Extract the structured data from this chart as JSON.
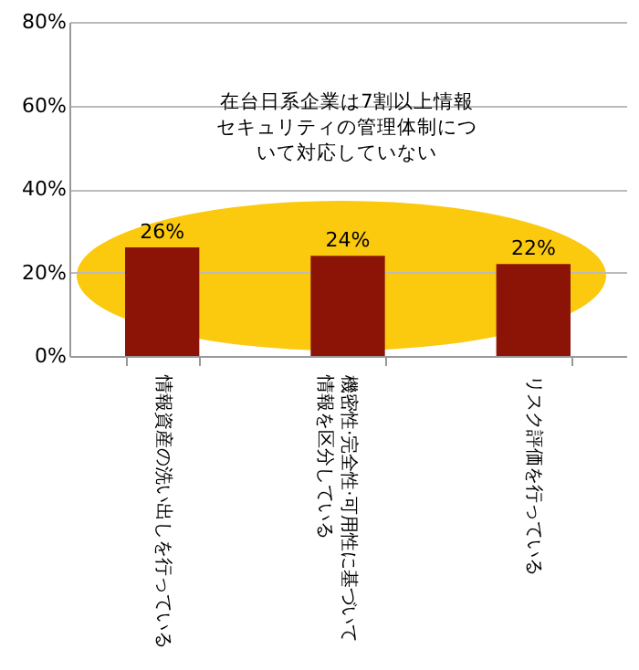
{
  "chart_data": {
    "type": "bar",
    "categories": [
      "情報資産の洗い出しを行っている",
      "機密性·完全性·可用性に基づいて情報を区分している",
      "リスク評価を行っている"
    ],
    "values": [
      26,
      24,
      22
    ],
    "color": "#8b1407",
    "ylim": [
      0,
      80
    ],
    "yticks": [
      {
        "value": 0,
        "label": "0%"
      },
      {
        "value": 20,
        "label": "20%"
      },
      {
        "value": 40,
        "label": "40%"
      },
      {
        "value": 60,
        "label": "60%"
      },
      {
        "value": 80,
        "label": "80%"
      }
    ],
    "grid": "y",
    "data_labels": true,
    "value_labels": [
      "26%",
      "24%",
      "22%"
    ],
    "annotations": [
      "在台日系企業は7割以上情報セキュリティの管理体制について対応していない"
    ]
  }
}
